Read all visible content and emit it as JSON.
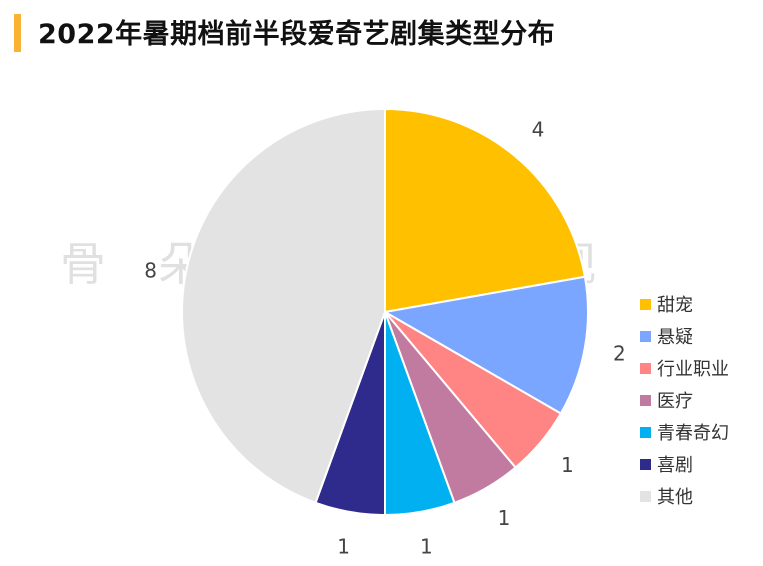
{
  "title": "2022年暑期档前半段爱奇艺剧集类型分布",
  "watermark": "骨朵网络影视",
  "accent_color": "#f9b233",
  "chart_data": {
    "type": "pie",
    "start_angle_deg": 0,
    "direction": "clockwise",
    "categories": [
      "甜宠",
      "悬疑",
      "行业职业",
      "医疗",
      "青春奇幻",
      "喜剧",
      "其他"
    ],
    "values": [
      4,
      2,
      1,
      1,
      1,
      1,
      8
    ],
    "colors": [
      "#ffc000",
      "#7aa6ff",
      "#ff8585",
      "#c27ba0",
      "#00b0f0",
      "#2e2b8c",
      "#e3e3e3"
    ],
    "data_labels": [
      "4",
      "2",
      "1",
      "1",
      "1",
      "1",
      "8"
    ],
    "legend_position": "right"
  }
}
